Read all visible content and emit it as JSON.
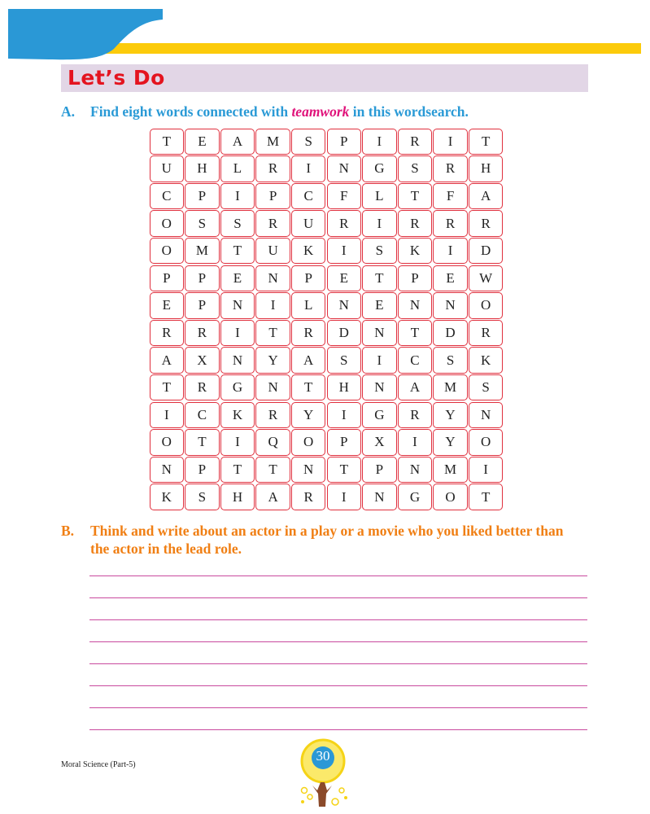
{
  "header": {
    "title": "Let’s Do",
    "colors": {
      "blue": "#2a98d6",
      "yellow": "#fccb0b",
      "banner": "#e2d6e6",
      "title": "#e4141f"
    }
  },
  "question_a": {
    "label": "A.",
    "text_before": "Find eight words connected with ",
    "emphasis": "teamwork",
    "text_after": " in this wordsearch."
  },
  "wordsearch": [
    [
      "T",
      "E",
      "A",
      "M",
      "S",
      "P",
      "I",
      "R",
      "I",
      "T"
    ],
    [
      "U",
      "H",
      "L",
      "R",
      "I",
      "N",
      "G",
      "S",
      "R",
      "H"
    ],
    [
      "C",
      "P",
      "I",
      "P",
      "C",
      "F",
      "L",
      "T",
      "F",
      "A"
    ],
    [
      "O",
      "S",
      "S",
      "R",
      "U",
      "R",
      "I",
      "R",
      "R",
      "R"
    ],
    [
      "O",
      "M",
      "T",
      "U",
      "K",
      "I",
      "S",
      "K",
      "I",
      "D"
    ],
    [
      "P",
      "P",
      "E",
      "N",
      "P",
      "E",
      "T",
      "P",
      "E",
      "W"
    ],
    [
      "E",
      "P",
      "N",
      "I",
      "L",
      "N",
      "E",
      "N",
      "N",
      "O"
    ],
    [
      "R",
      "R",
      "I",
      "T",
      "R",
      "D",
      "N",
      "T",
      "D",
      "R"
    ],
    [
      "A",
      "X",
      "N",
      "Y",
      "A",
      "S",
      "I",
      "C",
      "S",
      "K"
    ],
    [
      "T",
      "R",
      "G",
      "N",
      "T",
      "H",
      "N",
      "A",
      "M",
      "S"
    ],
    [
      "I",
      "C",
      "K",
      "R",
      "Y",
      "I",
      "G",
      "R",
      "Y",
      "N"
    ],
    [
      "O",
      "T",
      "I",
      "Q",
      "O",
      "P",
      "X",
      "I",
      "Y",
      "O"
    ],
    [
      "N",
      "P",
      "T",
      "T",
      "N",
      "T",
      "P",
      "N",
      "M",
      "I"
    ],
    [
      "K",
      "S",
      "H",
      "A",
      "R",
      "I",
      "N",
      "G",
      "O",
      "T"
    ]
  ],
  "question_b": {
    "label": "B.",
    "line1": "Think and write about an actor in a play or a movie who you liked better than",
    "line2": "the actor in the lead role."
  },
  "footer": {
    "book": "Moral Science (Part-5)",
    "page_number": "30"
  }
}
